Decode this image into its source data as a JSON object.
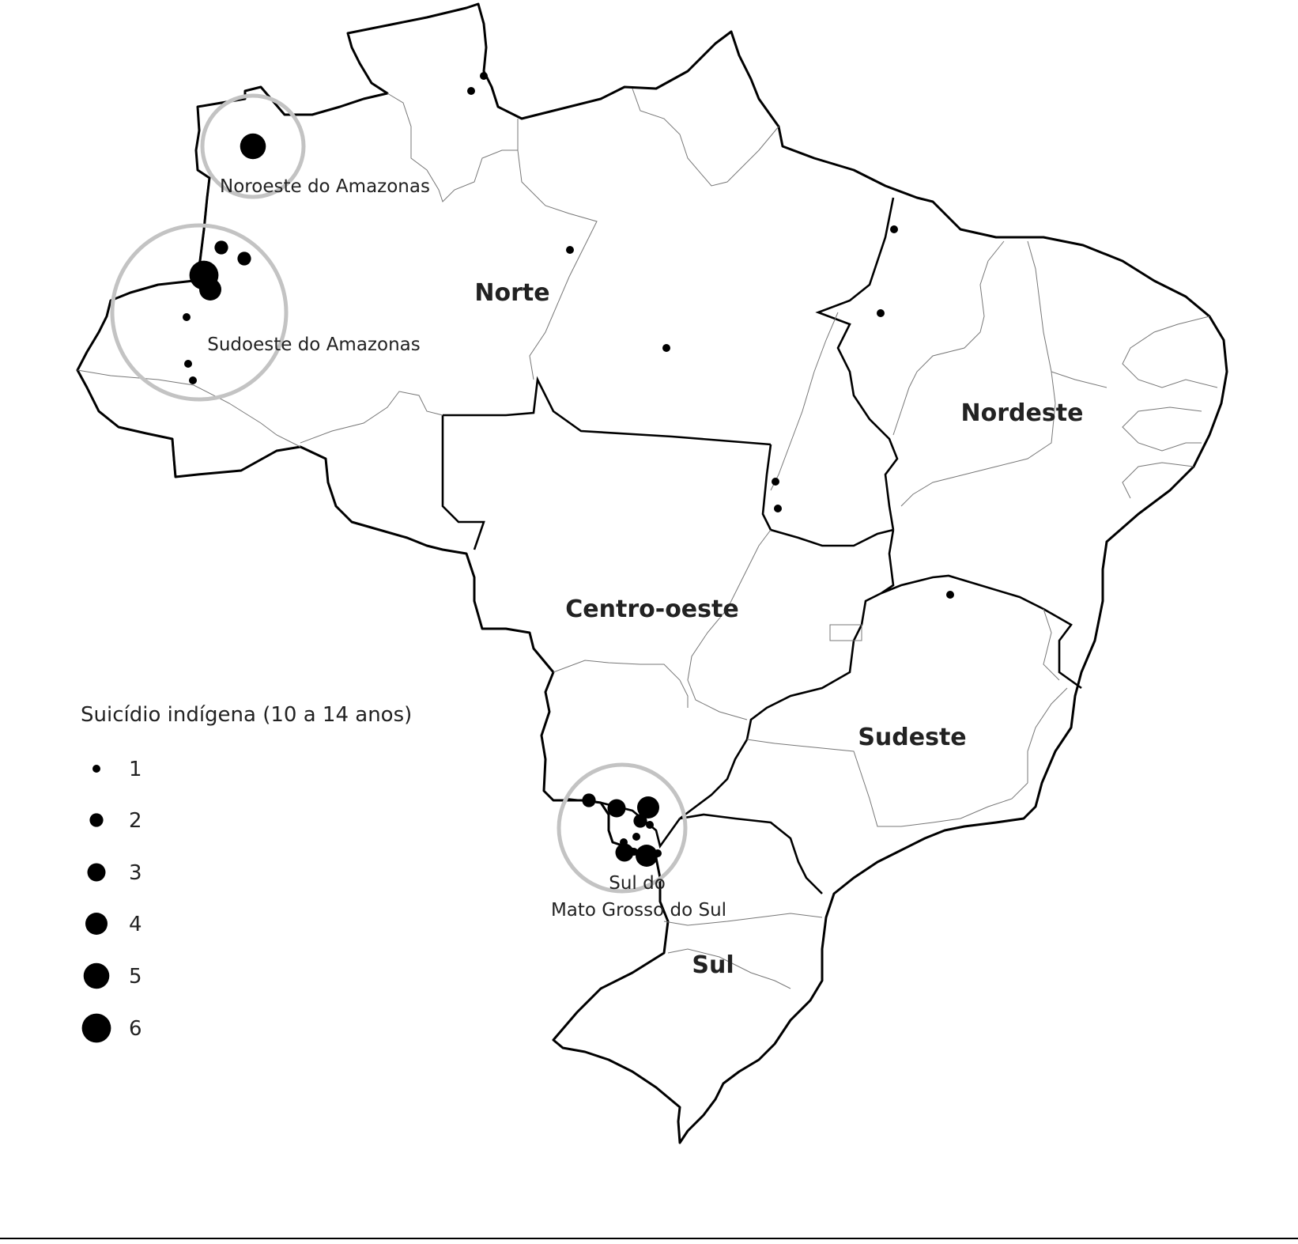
{
  "map": {
    "title_regions": [
      {
        "id": "norte",
        "label": "Norte"
      },
      {
        "id": "nordeste",
        "label": "Nordeste"
      },
      {
        "id": "centro-oeste",
        "label": "Centro-oeste"
      },
      {
        "id": "sudeste",
        "label": "Sudeste"
      },
      {
        "id": "sul",
        "label": "Sul"
      }
    ],
    "highlight_areas": [
      {
        "id": "noroeste-amazonas",
        "label_lines": [
          "Noroeste do Amazonas"
        ]
      },
      {
        "id": "sudoeste-amazonas",
        "label_lines": [
          "Sudoeste do Amazonas"
        ]
      },
      {
        "id": "sul-ms",
        "label_lines": [
          "Sul do",
          "Mato Grosso do Sul"
        ]
      }
    ],
    "colors": {
      "outline": "#000000",
      "fill": "#ffffff",
      "highlight_ring": "#c3c3c3",
      "dot": "#000000",
      "state_border": "#777777"
    }
  },
  "legend": {
    "title": "Suicídio indígena (10 a 14 anos)",
    "items": [
      {
        "value": 1,
        "label": "1"
      },
      {
        "value": 2,
        "label": "2"
      },
      {
        "value": 3,
        "label": "3"
      },
      {
        "value": 4,
        "label": "4"
      },
      {
        "value": 5,
        "label": "5"
      },
      {
        "value": 6,
        "label": "6"
      }
    ]
  },
  "cases": [
    {
      "area": "noroeste-amazonas",
      "count": 5
    },
    {
      "area": "roraima",
      "count": 1
    },
    {
      "area": "roraima",
      "count": 1
    },
    {
      "area": "sudoeste-amazonas",
      "count": 6
    },
    {
      "area": "sudoeste-amazonas",
      "count": 4
    },
    {
      "area": "sudoeste-amazonas",
      "count": 2
    },
    {
      "area": "sudoeste-amazonas",
      "count": 2
    },
    {
      "area": "sudoeste-amazonas",
      "count": 1
    },
    {
      "area": "sudoeste-amazonas",
      "count": 1
    },
    {
      "area": "sudoeste-amazonas",
      "count": 1
    },
    {
      "area": "amazonas-leste",
      "count": 1
    },
    {
      "area": "para",
      "count": 1
    },
    {
      "area": "amapa",
      "count": 1
    },
    {
      "area": "maranhao",
      "count": 1
    },
    {
      "area": "tocantins",
      "count": 1
    },
    {
      "area": "tocantins",
      "count": 1
    },
    {
      "area": "minas-gerais",
      "count": 1
    },
    {
      "area": "sul-ms",
      "count": 2
    },
    {
      "area": "sul-ms",
      "count": 3
    },
    {
      "area": "sul-ms",
      "count": 4
    },
    {
      "area": "sul-ms",
      "count": 2
    },
    {
      "area": "sul-ms",
      "count": 1
    },
    {
      "area": "sul-ms",
      "count": 1
    },
    {
      "area": "sul-ms",
      "count": 1
    },
    {
      "area": "sul-ms",
      "count": 3
    },
    {
      "area": "sul-ms",
      "count": 1
    },
    {
      "area": "sul-ms",
      "count": 4
    },
    {
      "area": "sul-ms",
      "count": 1
    }
  ]
}
